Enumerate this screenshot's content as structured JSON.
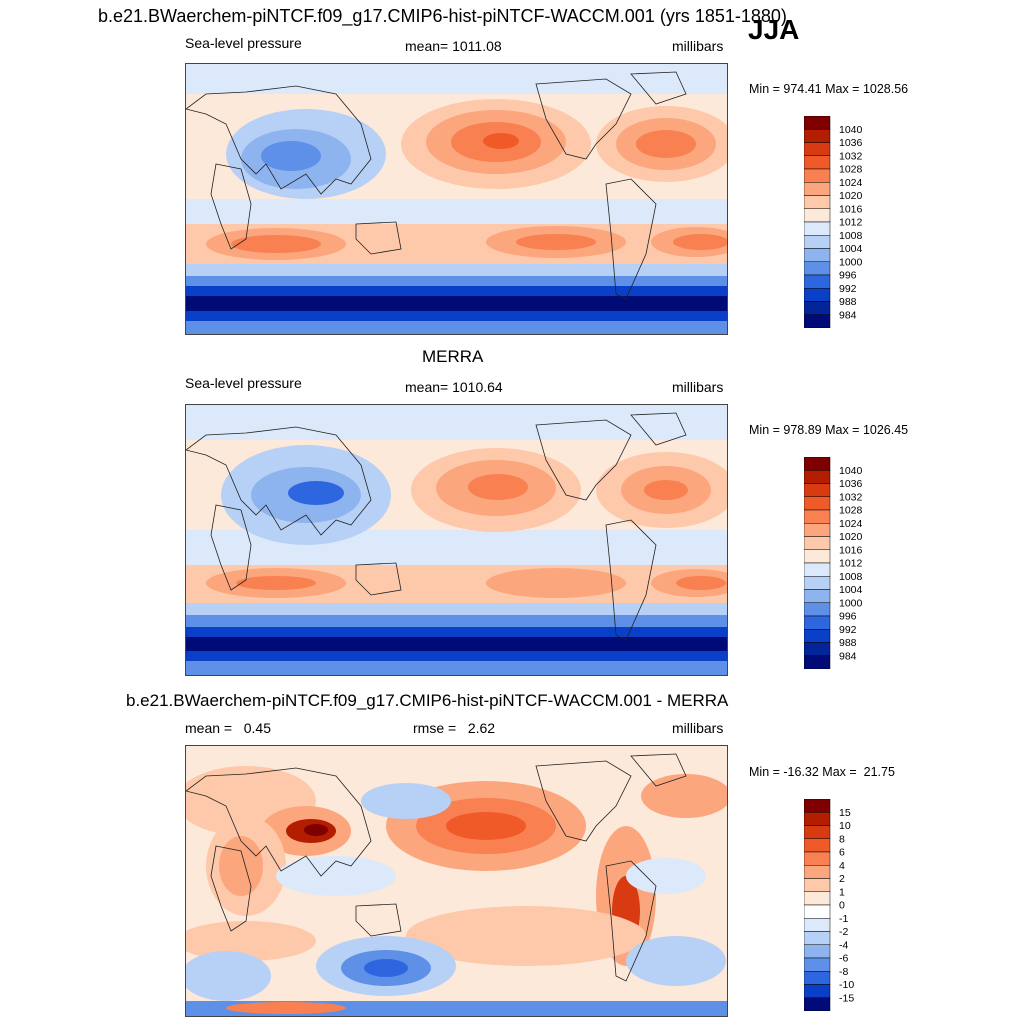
{
  "header": {
    "title": "b.e21.BWaerchem-piNTCF.f09_g17.CMIP6-hist-piNTCF-WACCM.001 (yrs 1851-1880)",
    "season": "JJA"
  },
  "panels": [
    {
      "id": "model",
      "panel_title": "",
      "left_label": "Sea-level pressure",
      "center_label": "mean= 1011.08",
      "right_label": "millibars",
      "minmax": "Min = 974.41 Max = 1028.56",
      "colorbar": {
        "labels": [
          "1040",
          "1036",
          "1032",
          "1028",
          "1024",
          "1020",
          "1016",
          "1012",
          "1008",
          "1004",
          "1000",
          "996",
          "992",
          "988",
          "984"
        ],
        "colors": [
          "#7f0000",
          "#b31e00",
          "#d83a12",
          "#f05a28",
          "#f98050",
          "#fca67d",
          "#fdc9aa",
          "#fde9da",
          "#dce9fb",
          "#b7d0f6",
          "#8eb4f0",
          "#5e90e8",
          "#2d66df",
          "#0a3fc8",
          "#04249a",
          "#000b78"
        ]
      }
    },
    {
      "id": "obs",
      "panel_title": "MERRA",
      "left_label": "Sea-level pressure",
      "center_label": "mean= 1010.64",
      "right_label": "millibars",
      "minmax": "Min = 978.89 Max = 1026.45",
      "colorbar": {
        "labels": [
          "1040",
          "1036",
          "1032",
          "1028",
          "1024",
          "1020",
          "1016",
          "1012",
          "1008",
          "1004",
          "1000",
          "996",
          "992",
          "988",
          "984"
        ],
        "colors": [
          "#7f0000",
          "#b31e00",
          "#d83a12",
          "#f05a28",
          "#f98050",
          "#fca67d",
          "#fdc9aa",
          "#fde9da",
          "#dce9fb",
          "#b7d0f6",
          "#8eb4f0",
          "#5e90e8",
          "#2d66df",
          "#0a3fc8",
          "#04249a",
          "#000b78"
        ]
      }
    },
    {
      "id": "diff",
      "panel_title": "b.e21.BWaerchem-piNTCF.f09_g17.CMIP6-hist-piNTCF-WACCM.001 - MERRA",
      "left_label": "mean =   0.45",
      "center_label": "rmse =   2.62",
      "right_label": "millibars",
      "minmax": "Min = -16.32 Max =  21.75",
      "colorbar": {
        "labels": [
          "15",
          "10",
          "8",
          "6",
          "4",
          "2",
          "1",
          "0",
          "-1",
          "-2",
          "-4",
          "-6",
          "-8",
          "-10",
          "-15"
        ],
        "colors": [
          "#7f0000",
          "#b31e00",
          "#d83a12",
          "#f05a28",
          "#f98050",
          "#fca67d",
          "#fdc9aa",
          "#fde9da",
          "#ffffff",
          "#dce9fb",
          "#b7d0f6",
          "#8eb4f0",
          "#5e90e8",
          "#2d66df",
          "#0a3fc8",
          "#000b78"
        ]
      }
    }
  ]
}
